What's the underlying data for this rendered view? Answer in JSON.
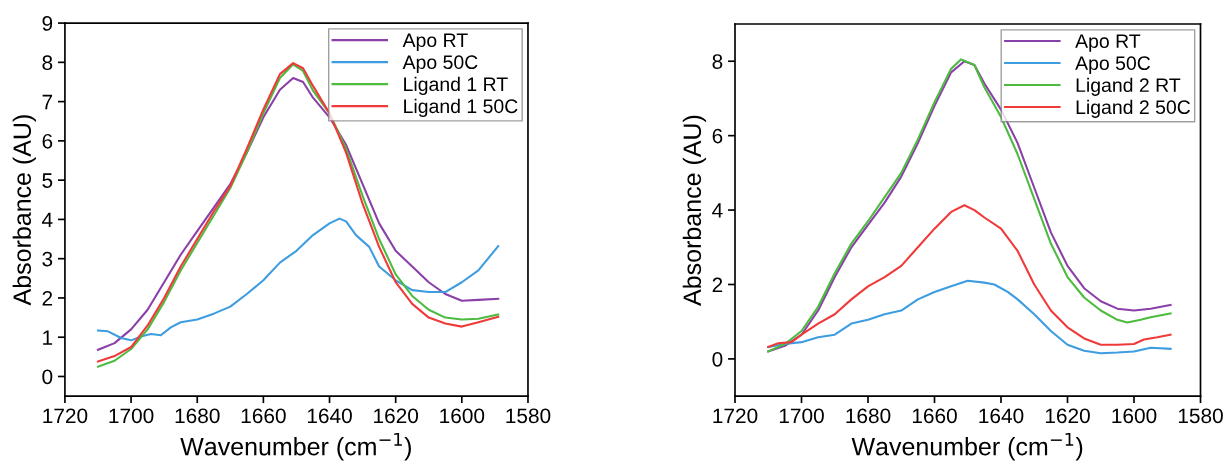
{
  "chart_data": [
    {
      "type": "line",
      "xlabel": "Wavenumber (cm$^{−1}$)",
      "ylabel": "Absorbance (AU)",
      "xlim": [
        1720,
        1580
      ],
      "xticks": [
        1720,
        1700,
        1680,
        1660,
        1640,
        1620,
        1600,
        1580
      ],
      "ylim": [
        -0.5,
        9
      ],
      "yticks": [
        0,
        1,
        2,
        3,
        4,
        5,
        6,
        7,
        8,
        9
      ],
      "legend": "top right",
      "grid": false,
      "marker": "none",
      "line_style": "solid",
      "series": [
        {
          "name": "Apo RT",
          "color": "#8b3fa8",
          "x": [
            1710,
            1705,
            1700,
            1695,
            1690,
            1685,
            1680,
            1675,
            1670,
            1665,
            1660,
            1655,
            1651,
            1648,
            1645,
            1640,
            1635,
            1630,
            1625,
            1620,
            1615,
            1610,
            1605,
            1600,
            1595,
            1589
          ],
          "values": [
            0.68,
            0.85,
            1.2,
            1.7,
            2.4,
            3.1,
            3.7,
            4.3,
            4.9,
            5.7,
            6.6,
            7.3,
            7.6,
            7.5,
            7.1,
            6.6,
            5.9,
            4.9,
            3.9,
            3.2,
            2.8,
            2.4,
            2.1,
            1.93,
            1.95,
            1.98
          ]
        },
        {
          "name": "Apo 50C",
          "color": "#3d9de0",
          "x": [
            1710,
            1707,
            1703,
            1700,
            1697,
            1694,
            1691,
            1688,
            1685,
            1680,
            1675,
            1670,
            1665,
            1660,
            1655,
            1650,
            1645,
            1640,
            1637,
            1635,
            1632,
            1628,
            1625,
            1620,
            1615,
            1610,
            1605,
            1600,
            1595,
            1589
          ],
          "values": [
            1.17,
            1.15,
            0.98,
            0.92,
            1.02,
            1.08,
            1.05,
            1.25,
            1.38,
            1.45,
            1.6,
            1.78,
            2.1,
            2.45,
            2.9,
            3.2,
            3.6,
            3.9,
            4.02,
            3.95,
            3.6,
            3.3,
            2.8,
            2.45,
            2.2,
            2.15,
            2.15,
            2.4,
            2.7,
            3.32
          ]
        },
        {
          "name": "Ligand 1 RT",
          "color": "#4cbb3f",
          "x": [
            1710,
            1705,
            1700,
            1695,
            1690,
            1685,
            1680,
            1675,
            1670,
            1665,
            1660,
            1655,
            1651,
            1648,
            1645,
            1640,
            1635,
            1630,
            1625,
            1620,
            1615,
            1610,
            1605,
            1600,
            1595,
            1589
          ],
          "values": [
            0.25,
            0.4,
            0.7,
            1.2,
            1.9,
            2.7,
            3.4,
            4.1,
            4.8,
            5.7,
            6.7,
            7.6,
            7.95,
            7.78,
            7.28,
            6.7,
            5.8,
            4.6,
            3.5,
            2.6,
            2.05,
            1.7,
            1.5,
            1.45,
            1.47,
            1.58
          ]
        },
        {
          "name": "Ligand 1 50C",
          "color": "#f03a3a",
          "x": [
            1710,
            1705,
            1700,
            1695,
            1690,
            1685,
            1680,
            1675,
            1670,
            1665,
            1660,
            1655,
            1651,
            1648,
            1645,
            1640,
            1635,
            1630,
            1625,
            1620,
            1615,
            1610,
            1605,
            1600,
            1595,
            1589
          ],
          "values": [
            0.38,
            0.52,
            0.75,
            1.3,
            2.0,
            2.8,
            3.5,
            4.2,
            4.85,
            5.8,
            6.8,
            7.7,
            7.98,
            7.85,
            7.4,
            6.7,
            5.7,
            4.4,
            3.3,
            2.4,
            1.85,
            1.5,
            1.35,
            1.27,
            1.38,
            1.52
          ]
        }
      ]
    },
    {
      "type": "line",
      "xlabel": "Wavenumber (cm$^{−1}$)",
      "ylabel": "Absorbance (AU)",
      "xlim": [
        1720,
        1580
      ],
      "xticks": [
        1720,
        1700,
        1680,
        1660,
        1640,
        1620,
        1600,
        1580
      ],
      "ylim": [
        -1,
        9
      ],
      "yticks": [
        0,
        2,
        4,
        6,
        8
      ],
      "legend": "top right",
      "grid": false,
      "marker": "none",
      "line_style": "solid",
      "series": [
        {
          "name": "Apo RT",
          "color": "#8b3fa8",
          "x": [
            1710,
            1705,
            1700,
            1695,
            1690,
            1685,
            1680,
            1675,
            1670,
            1665,
            1660,
            1655,
            1651,
            1648,
            1645,
            1640,
            1635,
            1630,
            1625,
            1620,
            1615,
            1610,
            1605,
            1600,
            1595,
            1589
          ],
          "values": [
            0.2,
            0.35,
            0.65,
            1.3,
            2.2,
            3.0,
            3.6,
            4.2,
            4.9,
            5.8,
            6.8,
            7.7,
            8.0,
            7.9,
            7.4,
            6.7,
            5.8,
            4.6,
            3.4,
            2.5,
            1.9,
            1.55,
            1.35,
            1.3,
            1.35,
            1.45
          ]
        },
        {
          "name": "Apo 50C",
          "color": "#3d9de0",
          "x": [
            1710,
            1705,
            1700,
            1695,
            1690,
            1685,
            1680,
            1675,
            1670,
            1665,
            1660,
            1655,
            1650,
            1645,
            1642,
            1638,
            1635,
            1630,
            1625,
            1620,
            1615,
            1610,
            1605,
            1600,
            1595,
            1589
          ],
          "values": [
            0.32,
            0.4,
            0.45,
            0.58,
            0.65,
            0.95,
            1.05,
            1.2,
            1.3,
            1.6,
            1.8,
            1.95,
            2.1,
            2.05,
            2.0,
            1.8,
            1.6,
            1.2,
            0.75,
            0.38,
            0.22,
            0.15,
            0.17,
            0.2,
            0.3,
            0.27
          ]
        },
        {
          "name": "Ligand 2 RT",
          "color": "#4cbb3f",
          "x": [
            1710,
            1705,
            1700,
            1695,
            1690,
            1685,
            1680,
            1675,
            1670,
            1665,
            1660,
            1655,
            1652,
            1648,
            1645,
            1640,
            1635,
            1630,
            1625,
            1620,
            1615,
            1610,
            1605,
            1602,
            1598,
            1595,
            1589
          ],
          "values": [
            0.2,
            0.4,
            0.75,
            1.4,
            2.3,
            3.1,
            3.7,
            4.35,
            5.0,
            5.9,
            6.9,
            7.8,
            8.05,
            7.9,
            7.3,
            6.5,
            5.5,
            4.3,
            3.1,
            2.2,
            1.65,
            1.3,
            1.05,
            0.98,
            1.05,
            1.12,
            1.22
          ]
        },
        {
          "name": "Ligand 2 50C",
          "color": "#f03a3a",
          "x": [
            1710,
            1707,
            1703,
            1700,
            1695,
            1690,
            1685,
            1680,
            1675,
            1670,
            1665,
            1660,
            1655,
            1651,
            1648,
            1645,
            1640,
            1635,
            1630,
            1625,
            1620,
            1615,
            1610,
            1605,
            1600,
            1597,
            1593,
            1589
          ],
          "values": [
            0.32,
            0.42,
            0.45,
            0.65,
            0.95,
            1.2,
            1.6,
            1.95,
            2.2,
            2.5,
            3.0,
            3.5,
            3.95,
            4.13,
            4.0,
            3.8,
            3.5,
            2.9,
            2.0,
            1.3,
            0.85,
            0.55,
            0.38,
            0.38,
            0.4,
            0.52,
            0.58,
            0.65
          ]
        }
      ]
    }
  ]
}
